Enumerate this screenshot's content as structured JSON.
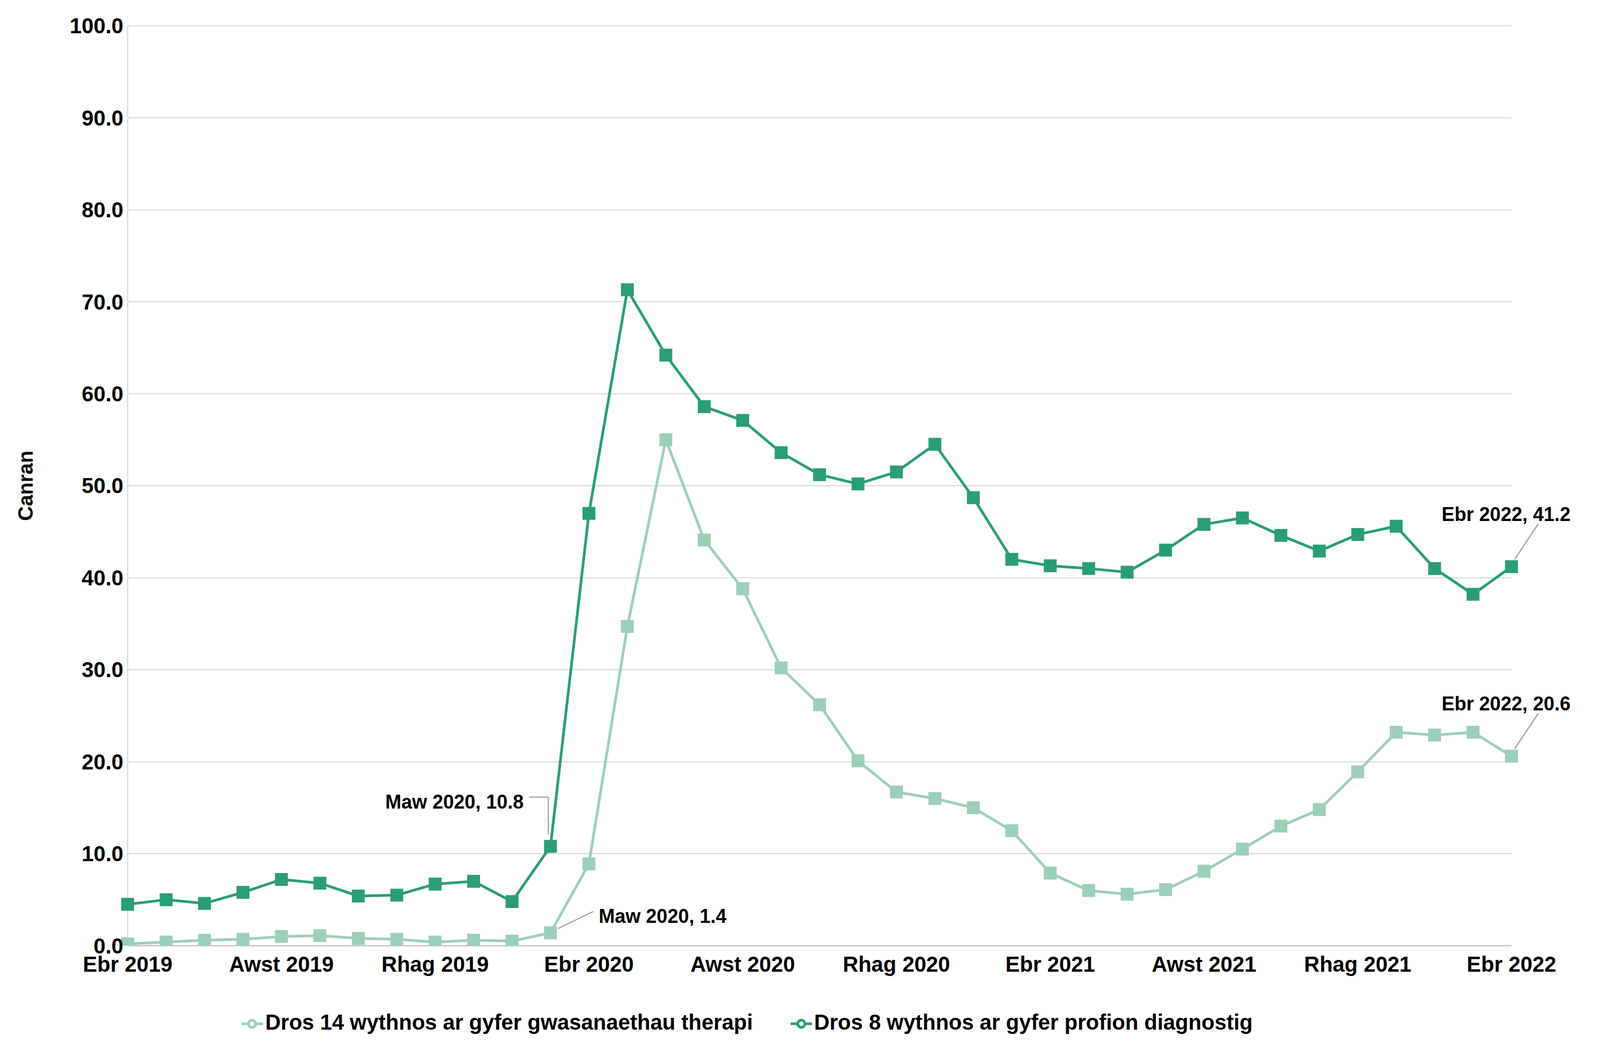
{
  "chart_data": {
    "type": "line",
    "y_label": "Canran",
    "categories": [
      "Ebr 2019",
      null,
      null,
      null,
      "Awst 2019",
      null,
      null,
      null,
      "Rhag 2019",
      null,
      null,
      null,
      "Ebr 2020",
      null,
      null,
      null,
      "Awst 2020",
      null,
      null,
      null,
      "Rhag 2020",
      null,
      null,
      null,
      "Ebr 2021",
      null,
      null,
      null,
      "Awst 2021",
      null,
      null,
      null,
      "Rhag 2021",
      null,
      null,
      null,
      "Ebr 2022"
    ],
    "series": [
      {
        "name": "Dros 8 wythnos ar gyfer profion diagnostig",
        "color": "#2a9d78",
        "marker": "square",
        "values": [
          4.5,
          5.0,
          4.6,
          5.8,
          7.2,
          6.8,
          5.4,
          5.5,
          6.7,
          7.0,
          4.8,
          10.8,
          47.0,
          71.3,
          64.2,
          58.6,
          57.1,
          53.6,
          51.2,
          50.2,
          51.5,
          54.5,
          48.7,
          42.0,
          41.3,
          41.0,
          40.6,
          43.0,
          45.8,
          46.5,
          44.6,
          42.9,
          44.7,
          45.6,
          41.0,
          38.2,
          41.2
        ]
      },
      {
        "name": "Dros 14 wythnos ar gyfer gwasanaethau therapi",
        "color": "#9ccfb7",
        "marker": "square",
        "values": [
          0.2,
          0.4,
          0.6,
          0.7,
          1.0,
          1.1,
          0.8,
          0.7,
          0.4,
          0.6,
          0.5,
          1.4,
          8.9,
          34.7,
          55.0,
          44.1,
          38.8,
          30.2,
          26.2,
          20.1,
          16.7,
          16.0,
          15.0,
          12.5,
          7.9,
          6.0,
          5.6,
          6.1,
          8.1,
          10.5,
          13.0,
          14.8,
          18.9,
          23.2,
          22.9,
          23.2,
          20.6
        ]
      }
    ],
    "annotations": [
      {
        "text": "Maw 2020, 10.8",
        "series": 0,
        "value": 10.8
      },
      {
        "text": "Maw 2020, 1.4",
        "series": 1,
        "value": 1.4
      },
      {
        "text": "Ebr 2022, 41.2",
        "series": 0,
        "value": 41.2
      },
      {
        "text": "Ebr 2022, 20.6",
        "series": 1,
        "value": 20.6
      }
    ],
    "ylim": [
      0,
      100
    ],
    "yticks": [
      {
        "value": 0,
        "label": "0.0"
      },
      {
        "value": 10,
        "label": "10.0"
      },
      {
        "value": 20,
        "label": "20.0"
      },
      {
        "value": 30,
        "label": "30.0"
      },
      {
        "value": 40,
        "label": "40.0"
      },
      {
        "value": 50,
        "label": "50.0"
      },
      {
        "value": 60,
        "label": "60.0"
      },
      {
        "value": 70,
        "label": "70.0"
      },
      {
        "value": 80,
        "label": "80.0"
      },
      {
        "value": 90,
        "label": "90.0"
      },
      {
        "value": 100,
        "label": "100.0"
      }
    ],
    "grid": true,
    "legend": "bottom"
  }
}
